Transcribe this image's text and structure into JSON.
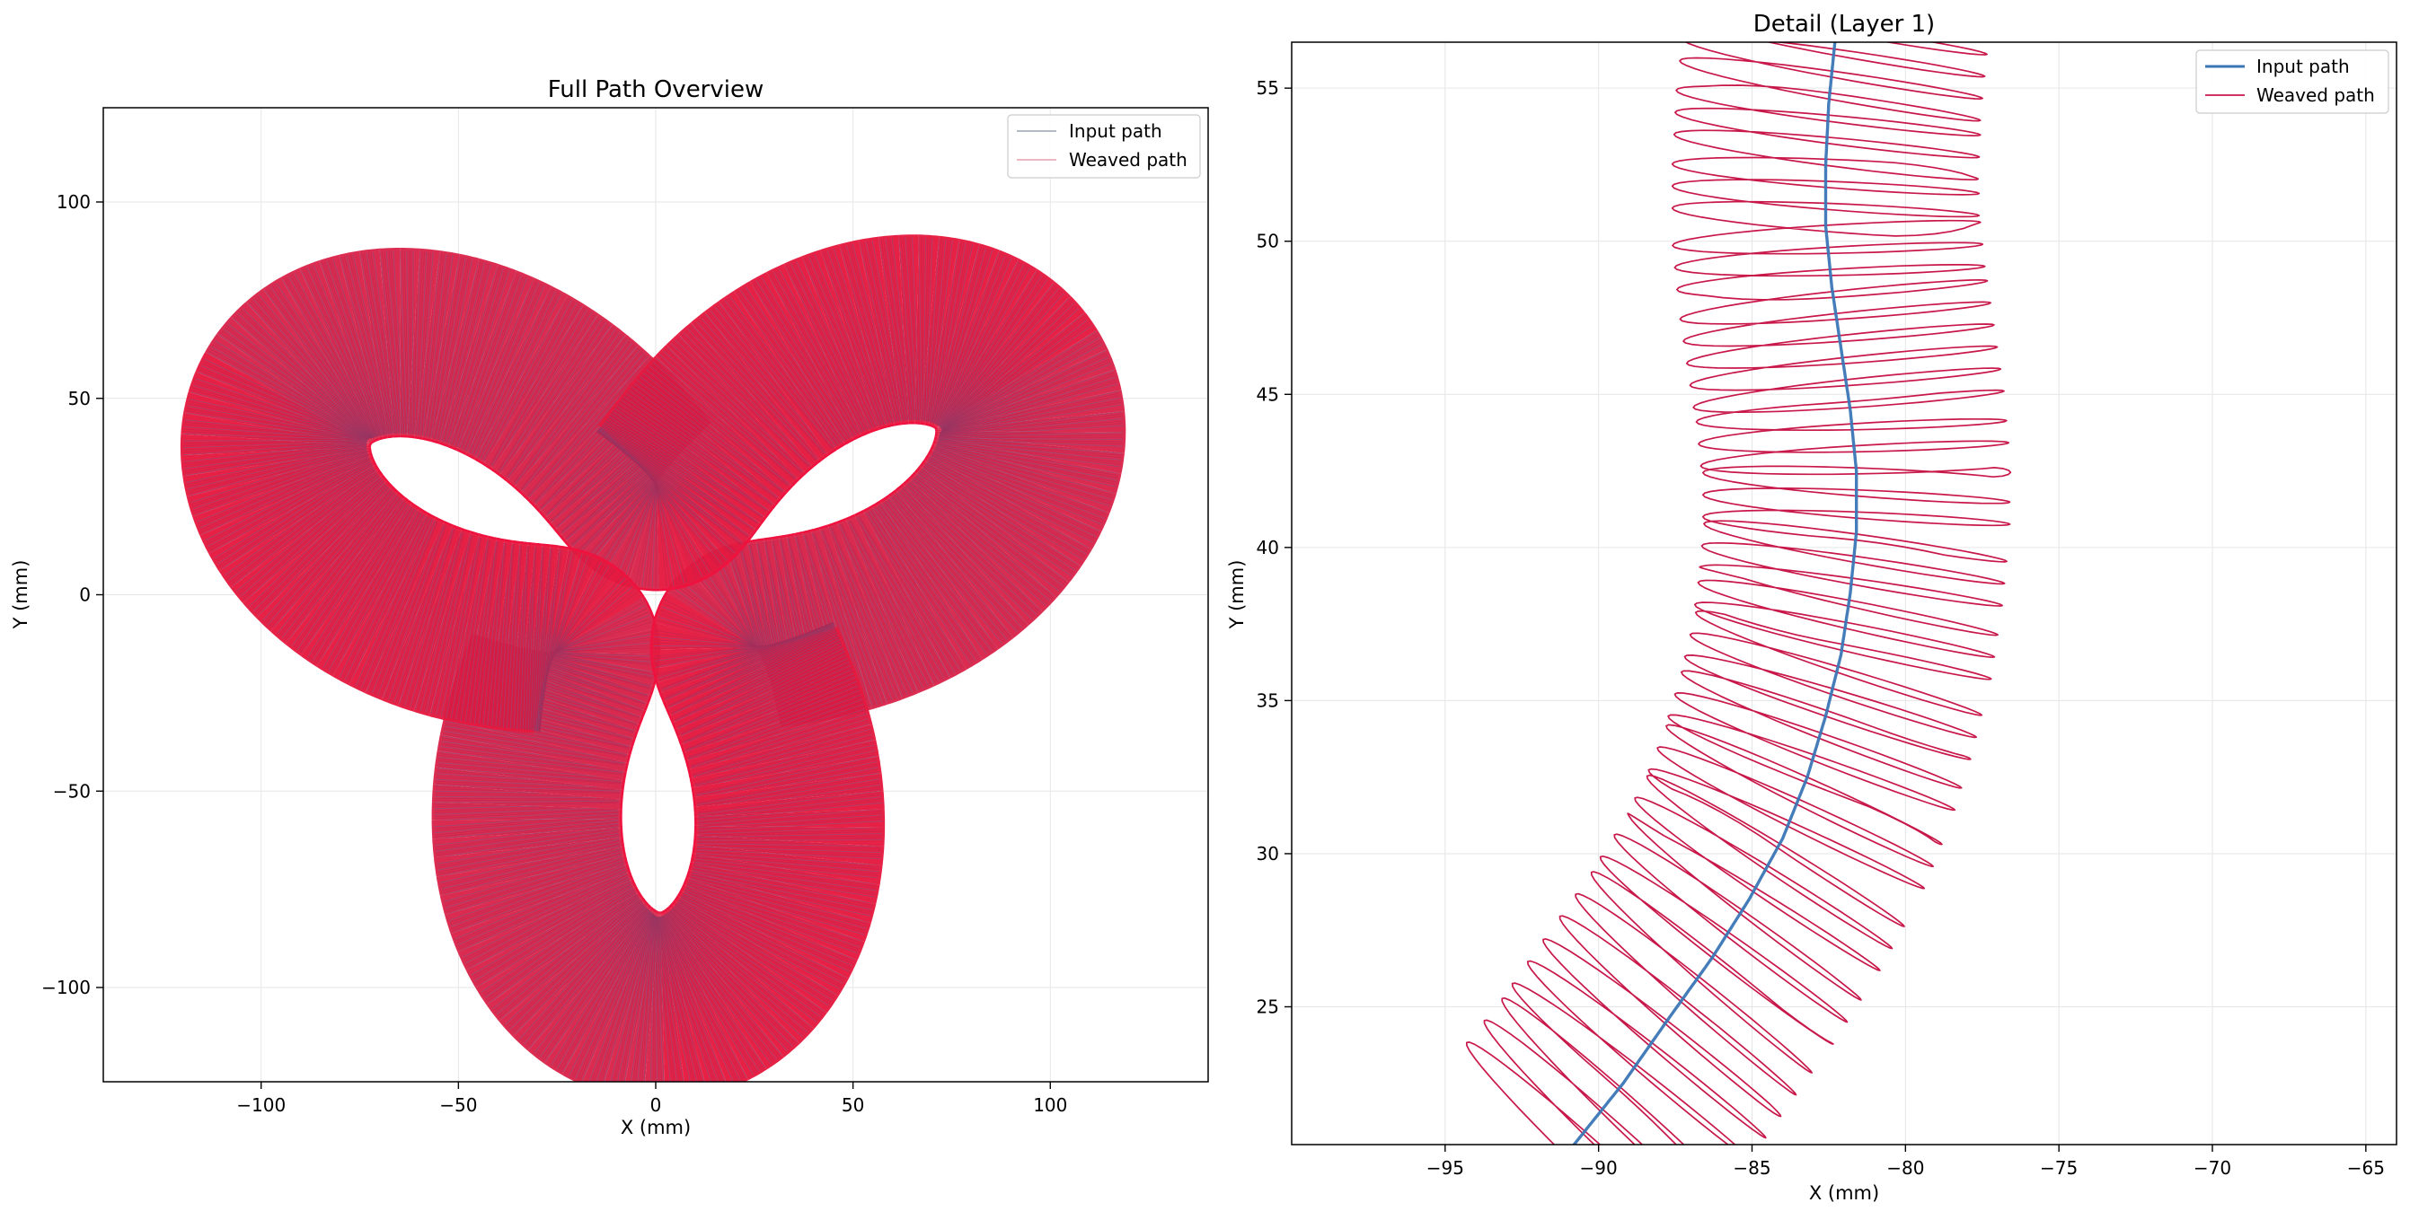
{
  "chart_data": [
    {
      "type": "line",
      "title": "Full Path Overview",
      "xlabel": "X  (mm)",
      "ylabel": "Y  (mm)",
      "xlim": [
        -140,
        140
      ],
      "ylim": [
        -124,
        124
      ],
      "x_ticks": [
        -100,
        -50,
        0,
        50,
        100
      ],
      "y_ticks": [
        -100,
        -50,
        0,
        50,
        100
      ],
      "x_tick_labels": [
        "−100",
        "−50",
        "0",
        "50",
        "100"
      ],
      "y_tick_labels": [
        "−100",
        "−50",
        "0",
        "50",
        "100"
      ],
      "grid": true,
      "legend": "top-right",
      "series": [
        {
          "name": "Input path",
          "color": "#4a7bb7"
        },
        {
          "name": "Weaved path",
          "color": "#e8103a"
        }
      ],
      "description_shape": "trefoil knot ribbon",
      "knot": {
        "center": [
          0,
          0
        ],
        "outer_radius": 105,
        "band_width": 48
      }
    },
    {
      "type": "line",
      "title": "Detail  (Layer 1)",
      "xlabel": "X  (mm)",
      "ylabel": "Y  (mm)",
      "xlim": [
        -100,
        -64
      ],
      "ylim": [
        20.5,
        56.5
      ],
      "x_ticks": [
        -95,
        -90,
        -85,
        -80,
        -75,
        -70,
        -65
      ],
      "y_ticks": [
        25,
        30,
        35,
        40,
        45,
        50,
        55
      ],
      "x_tick_labels": [
        "−95",
        "−90",
        "−85",
        "−80",
        "−75",
        "−70",
        "−65"
      ],
      "y_tick_labels": [
        "25",
        "30",
        "35",
        "40",
        "45",
        "50",
        "55"
      ],
      "grid": true,
      "legend": "top-right",
      "series": [
        {
          "name": "Input path",
          "color": "#3a76b5",
          "x": [
            -90.8,
            -89.2,
            -87.8,
            -86.3,
            -85.1,
            -84.0,
            -83.2,
            -82.6,
            -82.1,
            -81.8,
            -81.6,
            -81.6,
            -81.8,
            -82.1,
            -82.4,
            -82.6,
            -82.6,
            -82.5,
            -82.3
          ],
          "y": [
            20.5,
            22.5,
            24.5,
            26.6,
            28.5,
            30.5,
            32.5,
            34.5,
            36.5,
            38.5,
            40.5,
            42.5,
            44.5,
            46.5,
            48.5,
            50.5,
            52.5,
            54.5,
            56.5
          ]
        },
        {
          "name": "Weaved path",
          "color": "#c8184a",
          "amplitude": 5.0,
          "weave_pitch": 0.72,
          "start_y": 20.0
        }
      ]
    }
  ]
}
